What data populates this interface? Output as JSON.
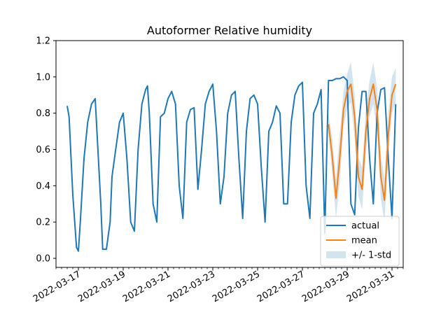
{
  "chart_data": {
    "type": "line",
    "title": "Autoformer Relative humidity",
    "xlabel": "",
    "ylabel": "",
    "xlim": [
      "2022-03-16T00:00",
      "2022-03-31T12:00"
    ],
    "ylim": [
      -0.05,
      1.2
    ],
    "yticks": [
      0.0,
      0.2,
      0.4,
      0.6,
      0.8,
      1.0,
      1.2
    ],
    "ytick_labels": [
      "0.0",
      "0.2",
      "0.4",
      "0.6",
      "0.8",
      "1.0",
      "1.2"
    ],
    "xticks": [
      "2022-03-17",
      "2022-03-19",
      "2022-03-21",
      "2022-03-23",
      "2022-03-25",
      "2022-03-27",
      "2022-03-29",
      "2022-03-31"
    ],
    "xtick_labels": [
      "2022-03-17",
      "2022-03-19",
      "2022-03-21",
      "2022-03-23",
      "2022-03-25",
      "2022-03-27",
      "2022-03-29",
      "2022-03-31"
    ],
    "legend_position": "lower-right",
    "grid": false,
    "series": [
      {
        "name": "actual",
        "color": "#1f77b4",
        "x": [
          "2022-03-16T12:00",
          "2022-03-16T14:00",
          "2022-03-16T18:00",
          "2022-03-16T22:00",
          "2022-03-17T00:00",
          "2022-03-17T02:00",
          "2022-03-17T06:00",
          "2022-03-17T10:00",
          "2022-03-17T14:00",
          "2022-03-17T18:00",
          "2022-03-18T00:00",
          "2022-03-18T02:00",
          "2022-03-18T06:00",
          "2022-03-18T10:00",
          "2022-03-18T12:00",
          "2022-03-18T16:00",
          "2022-03-18T20:00",
          "2022-03-19T00:00",
          "2022-03-19T04:00",
          "2022-03-19T08:00",
          "2022-03-19T12:00",
          "2022-03-19T16:00",
          "2022-03-19T20:00",
          "2022-03-20T00:00",
          "2022-03-20T02:00",
          "2022-03-20T04:00",
          "2022-03-20T08:00",
          "2022-03-20T12:00",
          "2022-03-20T16:00",
          "2022-03-20T20:00",
          "2022-03-21T00:00",
          "2022-03-21T04:00",
          "2022-03-21T08:00",
          "2022-03-21T12:00",
          "2022-03-21T16:00",
          "2022-03-21T20:00",
          "2022-03-22T00:00",
          "2022-03-22T04:00",
          "2022-03-22T08:00",
          "2022-03-22T12:00",
          "2022-03-22T16:00",
          "2022-03-22T20:00",
          "2022-03-23T00:00",
          "2022-03-23T04:00",
          "2022-03-23T08:00",
          "2022-03-23T12:00",
          "2022-03-23T16:00",
          "2022-03-23T20:00",
          "2022-03-24T00:00",
          "2022-03-24T04:00",
          "2022-03-24T08:00",
          "2022-03-24T12:00",
          "2022-03-24T16:00",
          "2022-03-24T20:00",
          "2022-03-25T00:00",
          "2022-03-25T04:00",
          "2022-03-25T08:00",
          "2022-03-25T12:00",
          "2022-03-25T16:00",
          "2022-03-25T20:00",
          "2022-03-26T00:00",
          "2022-03-26T04:00",
          "2022-03-26T08:00",
          "2022-03-26T12:00",
          "2022-03-26T16:00",
          "2022-03-26T20:00",
          "2022-03-27T00:00",
          "2022-03-27T04:00",
          "2022-03-27T08:00",
          "2022-03-27T12:00",
          "2022-03-27T16:00",
          "2022-03-27T20:00",
          "2022-03-28T00:00",
          "2022-03-28T04:00",
          "2022-03-28T08:00",
          "2022-03-28T12:00",
          "2022-03-28T16:00",
          "2022-03-28T20:00",
          "2022-03-29T00:00",
          "2022-03-29T04:00",
          "2022-03-29T08:00",
          "2022-03-29T12:00",
          "2022-03-29T16:00",
          "2022-03-29T20:00",
          "2022-03-30T00:00",
          "2022-03-30T04:00",
          "2022-03-30T08:00",
          "2022-03-30T12:00",
          "2022-03-30T16:00",
          "2022-03-30T20:00",
          "2022-03-31T00:00",
          "2022-03-31T04:00"
        ],
        "y": [
          0.84,
          0.78,
          0.35,
          0.06,
          0.04,
          0.2,
          0.55,
          0.75,
          0.85,
          0.88,
          0.3,
          0.05,
          0.05,
          0.2,
          0.45,
          0.6,
          0.75,
          0.8,
          0.55,
          0.2,
          0.15,
          0.6,
          0.85,
          0.93,
          0.95,
          0.8,
          0.3,
          0.2,
          0.78,
          0.8,
          0.88,
          0.92,
          0.85,
          0.4,
          0.22,
          0.75,
          0.82,
          0.83,
          0.38,
          0.6,
          0.85,
          0.92,
          0.96,
          0.7,
          0.3,
          0.45,
          0.8,
          0.9,
          0.92,
          0.55,
          0.22,
          0.7,
          0.88,
          0.9,
          0.85,
          0.5,
          0.2,
          0.7,
          0.75,
          0.84,
          0.8,
          0.3,
          0.3,
          0.75,
          0.9,
          0.95,
          0.97,
          0.4,
          0.22,
          0.8,
          0.85,
          0.93,
          0.14,
          0.98,
          0.98,
          0.99,
          0.99,
          1.0,
          0.98,
          0.3,
          0.24,
          0.72,
          0.92,
          0.92,
          0.55,
          0.3,
          0.8,
          0.93,
          0.94,
          0.55,
          0.22,
          0.85
        ]
      },
      {
        "name": "mean",
        "color": "#ff7f0e",
        "x": [
          "2022-03-28T04:00",
          "2022-03-28T08:00",
          "2022-03-28T12:00",
          "2022-03-28T16:00",
          "2022-03-28T20:00",
          "2022-03-29T00:00",
          "2022-03-29T04:00",
          "2022-03-29T08:00",
          "2022-03-29T12:00",
          "2022-03-29T16:00",
          "2022-03-29T20:00",
          "2022-03-30T00:00",
          "2022-03-30T04:00",
          "2022-03-30T08:00",
          "2022-03-30T12:00",
          "2022-03-30T16:00",
          "2022-03-30T20:00",
          "2022-03-31T00:00",
          "2022-03-31T04:00"
        ],
        "y": [
          0.74,
          0.56,
          0.33,
          0.55,
          0.82,
          0.92,
          0.96,
          0.78,
          0.45,
          0.38,
          0.7,
          0.88,
          0.96,
          0.82,
          0.45,
          0.32,
          0.68,
          0.9,
          0.96
        ]
      }
    ],
    "band": {
      "name": "+/- 1-std",
      "color": "#1f77b4",
      "opacity": 0.2,
      "x": [
        "2022-03-28T04:00",
        "2022-03-28T08:00",
        "2022-03-28T12:00",
        "2022-03-28T16:00",
        "2022-03-28T20:00",
        "2022-03-29T00:00",
        "2022-03-29T04:00",
        "2022-03-29T08:00",
        "2022-03-29T12:00",
        "2022-03-29T16:00",
        "2022-03-29T20:00",
        "2022-03-30T00:00",
        "2022-03-30T04:00",
        "2022-03-30T08:00",
        "2022-03-30T12:00",
        "2022-03-30T16:00",
        "2022-03-30T20:00",
        "2022-03-31T00:00",
        "2022-03-31T04:00"
      ],
      "lower": [
        0.68,
        0.46,
        0.22,
        0.42,
        0.72,
        0.83,
        0.86,
        0.66,
        0.34,
        0.27,
        0.58,
        0.78,
        0.85,
        0.7,
        0.33,
        0.2,
        0.56,
        0.8,
        0.86
      ],
      "upper": [
        0.8,
        0.66,
        0.44,
        0.68,
        0.92,
        1.02,
        1.08,
        0.9,
        0.56,
        0.5,
        0.82,
        0.98,
        1.08,
        0.94,
        0.57,
        0.44,
        0.8,
        1.0,
        1.05
      ]
    }
  }
}
